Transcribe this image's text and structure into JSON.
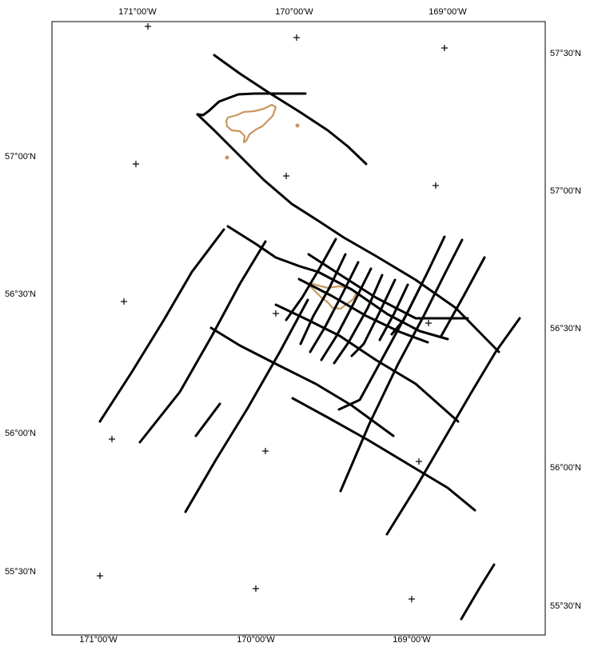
{
  "map": {
    "colors": {
      "tracks": "#000000",
      "coastline": "#c8965e",
      "frame": "#000000",
      "background": "#ffffff"
    },
    "top_labels": [
      "171°00'W",
      "170°00'W",
      "169°00'W"
    ],
    "bottom_labels": [
      "171°00'W",
      "170°00'W",
      "169°00'W"
    ],
    "left_labels": [
      "57°00'N",
      "56°30'N",
      "56°00'N",
      "55°30'N"
    ],
    "right_labels": [
      "57°30'N",
      "57°00'N",
      "56°30'N",
      "56°00'N",
      "55°30'N"
    ]
  }
}
